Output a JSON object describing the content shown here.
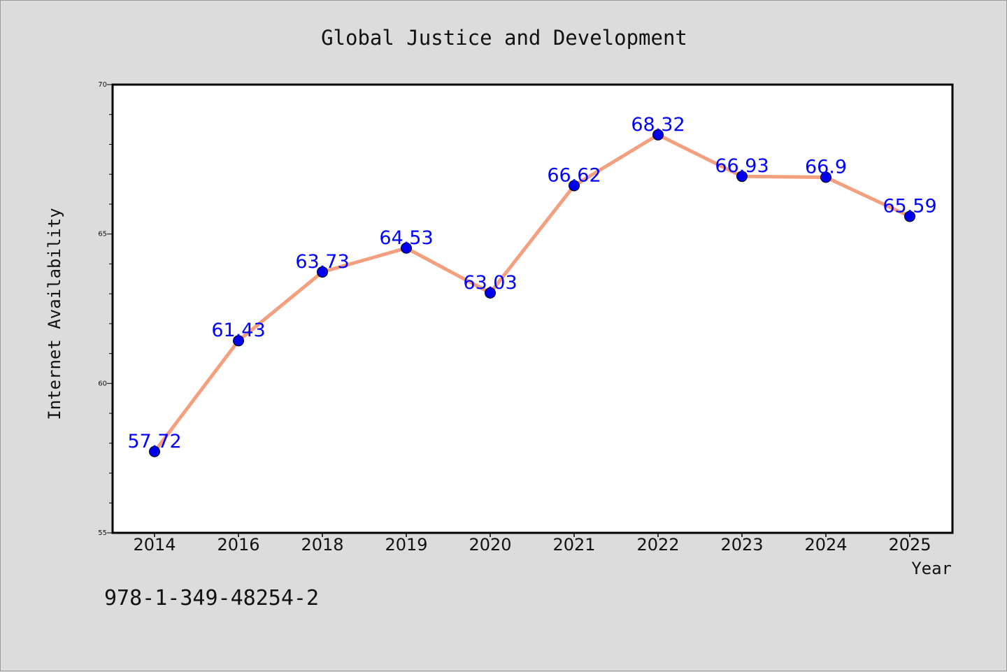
{
  "chart_data": {
    "type": "line",
    "title": "Global Justice and Development",
    "xlabel": "Year",
    "ylabel": "Internet Availability",
    "categories": [
      "2014",
      "2016",
      "2018",
      "2019",
      "2020",
      "2021",
      "2022",
      "2023",
      "2024",
      "2025"
    ],
    "series": [
      {
        "values": [
          57.72,
          61.43,
          63.73,
          64.53,
          63.03,
          66.62,
          68.32,
          66.93,
          66.9,
          65.59
        ],
        "line_color": "#f4a07e",
        "marker_color": "#0000ee"
      }
    ],
    "data_labels": [
      "57.72",
      "61.43",
      "63.73",
      "64.53",
      "63.03",
      "66.62",
      "68.32",
      "66.93",
      "66.9",
      "65.59"
    ],
    "ylim": [
      55,
      70
    ],
    "yticks": [
      55,
      60,
      65,
      70
    ],
    "ytick_labels": [
      "55",
      "60",
      "65",
      "70"
    ],
    "grid": false,
    "label_color": "#0000ff",
    "background": "#dcdcdc",
    "plot_background": "#ffffff"
  },
  "footer": {
    "isbn": "978-1-349-48254-2"
  }
}
